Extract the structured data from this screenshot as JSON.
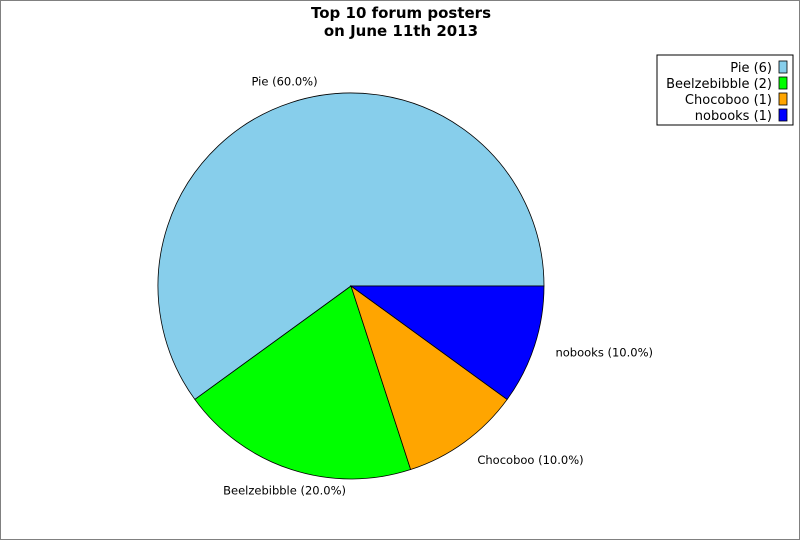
{
  "chart_data": {
    "type": "pie",
    "title": [
      "Top 10 forum posters",
      "on June 11th 2013"
    ],
    "start_angle_deg": 0,
    "direction": "counterclockwise",
    "legend_position": "top-right",
    "slices": [
      {
        "name": "Pie",
        "value": 6,
        "label": "Pie (60.0%)",
        "legend": "Pie (6)",
        "color": "#87CEEB"
      },
      {
        "name": "Beelzebibble",
        "value": 2,
        "label": "Beelzebibble (20.0%)",
        "legend": "Beelzebibble (2)",
        "color": "#00FF00"
      },
      {
        "name": "Chocoboo",
        "value": 1,
        "label": "Chocoboo (10.0%)",
        "legend": "Chocoboo (1)",
        "color": "#FFA500"
      },
      {
        "name": "nobooks",
        "value": 1,
        "label": "nobooks (10.0%)",
        "legend": "nobooks (1)",
        "color": "#0000FF"
      }
    ]
  }
}
